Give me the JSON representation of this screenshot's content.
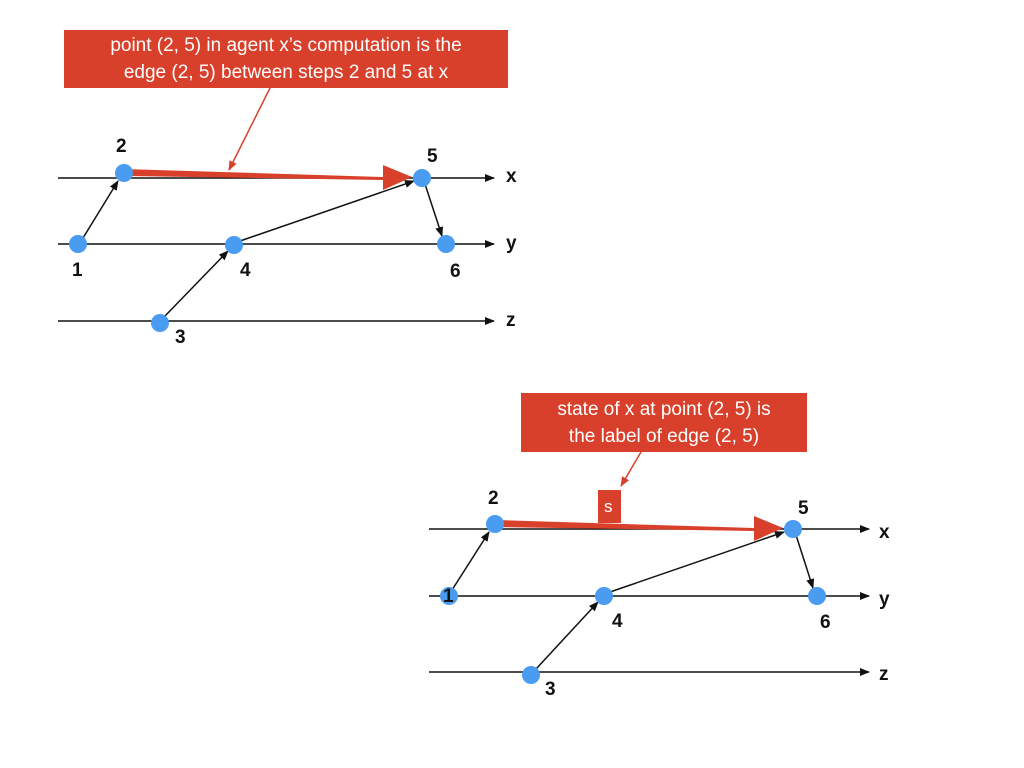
{
  "diagram1": {
    "callout": {
      "line1": "point (2, 5) in agent x’s computation is the",
      "line2": "edge (2,  5) between steps 2 and 5  at x"
    },
    "lines": [
      "x",
      "y",
      "z"
    ],
    "nodes": [
      "1",
      "2",
      "3",
      "4",
      "5",
      "6"
    ]
  },
  "diagram2": {
    "callout": {
      "line1": "state of x at point (2, 5) is",
      "line2": "the label of edge (2, 5)"
    },
    "edge_label": "s",
    "lines": [
      "x",
      "y",
      "z"
    ],
    "nodes": [
      "1",
      "2",
      "3",
      "4",
      "5",
      "6"
    ]
  },
  "colors": {
    "node": "#4a9cf0",
    "highlight": "#d9402b",
    "line": "#111111"
  }
}
